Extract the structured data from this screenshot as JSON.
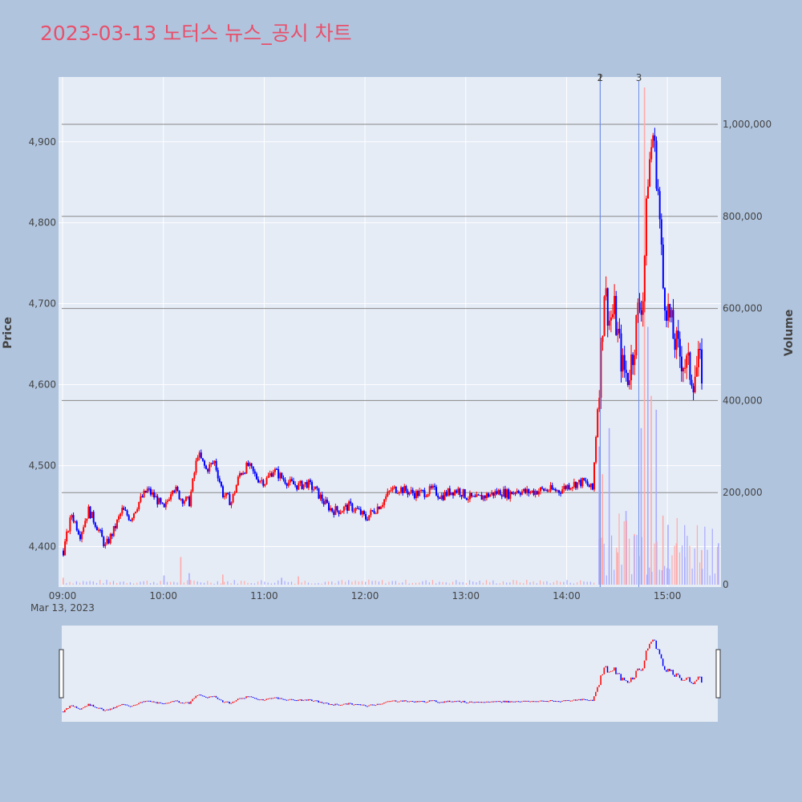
{
  "chart_data": {
    "type": "candlestick",
    "title": "2023-03-13 노터스 뉴스_공시 차트",
    "ylabel_left": "Price",
    "ylabel_right": "Volume",
    "date_label": "Mar 13, 2023",
    "x_range": [
      "09:00",
      "15:30"
    ],
    "x_ticks": [
      "09:00",
      "10:00",
      "11:00",
      "12:00",
      "13:00",
      "14:00",
      "15:00"
    ],
    "price_range": [
      4350,
      4980
    ],
    "price_ticks": [
      "4,400",
      "4,500",
      "4,600",
      "4,700",
      "4,800",
      "4,900"
    ],
    "price_tick_values": [
      4400,
      4500,
      4600,
      4700,
      4800,
      4900
    ],
    "volume_range": [
      0,
      1000000
    ],
    "volume_ticks": [
      "0",
      "200,000",
      "400,000",
      "600,000",
      "800,000",
      "1,000,000"
    ],
    "volume_tick_values": [
      0,
      200000,
      400000,
      600000,
      800000,
      1000000
    ],
    "up_color": "#ff0000",
    "down_color": "#0000ff",
    "event_markers": [
      {
        "label": "1",
        "time": "14:20"
      },
      {
        "label": "2",
        "time": "14:20"
      },
      {
        "label": "3",
        "time": "14:43"
      }
    ],
    "price_path": [
      [
        "09:00",
        4395
      ],
      [
        "09:05",
        4440
      ],
      [
        "09:10",
        4415
      ],
      [
        "09:15",
        4445
      ],
      [
        "09:20",
        4425
      ],
      [
        "09:25",
        4400
      ],
      [
        "09:30",
        4420
      ],
      [
        "09:35",
        4445
      ],
      [
        "09:40",
        4435
      ],
      [
        "09:45",
        4455
      ],
      [
        "09:50",
        4470
      ],
      [
        "09:55",
        4460
      ],
      [
        "10:00",
        4445
      ],
      [
        "10:05",
        4475
      ],
      [
        "10:10",
        4460
      ],
      [
        "10:15",
        4455
      ],
      [
        "10:20",
        4515
      ],
      [
        "10:25",
        4495
      ],
      [
        "10:30",
        4505
      ],
      [
        "10:35",
        4465
      ],
      [
        "10:40",
        4455
      ],
      [
        "10:45",
        4490
      ],
      [
        "10:50",
        4500
      ],
      [
        "10:55",
        4485
      ],
      [
        "11:00",
        4480
      ],
      [
        "11:05",
        4495
      ],
      [
        "11:10",
        4485
      ],
      [
        "11:15",
        4478
      ],
      [
        "11:20",
        4475
      ],
      [
        "11:25",
        4478
      ],
      [
        "11:30",
        4470
      ],
      [
        "11:35",
        4455
      ],
      [
        "11:40",
        4445
      ],
      [
        "11:45",
        4445
      ],
      [
        "11:50",
        4450
      ],
      [
        "11:55",
        4445
      ],
      [
        "12:00",
        4435
      ],
      [
        "12:05",
        4445
      ],
      [
        "12:10",
        4455
      ],
      [
        "12:15",
        4470
      ],
      [
        "12:20",
        4472
      ],
      [
        "12:25",
        4468
      ],
      [
        "12:30",
        4465
      ],
      [
        "12:35",
        4467
      ],
      [
        "12:40",
        4470
      ],
      [
        "12:45",
        4462
      ],
      [
        "12:50",
        4468
      ],
      [
        "12:55",
        4470
      ],
      [
        "13:00",
        4462
      ],
      [
        "13:05",
        4458
      ],
      [
        "13:10",
        4462
      ],
      [
        "13:15",
        4465
      ],
      [
        "13:20",
        4468
      ],
      [
        "13:25",
        4465
      ],
      [
        "13:30",
        4470
      ],
      [
        "13:35",
        4467
      ],
      [
        "13:40",
        4468
      ],
      [
        "13:45",
        4470
      ],
      [
        "13:50",
        4470
      ],
      [
        "13:55",
        4469
      ],
      [
        "14:00",
        4475
      ],
      [
        "14:05",
        4478
      ],
      [
        "14:10",
        4480
      ],
      [
        "14:15",
        4470
      ],
      [
        "14:20",
        4640
      ],
      [
        "14:22",
        4720
      ],
      [
        "14:25",
        4680
      ],
      [
        "14:28",
        4690
      ],
      [
        "14:30",
        4660
      ],
      [
        "14:33",
        4620
      ],
      [
        "14:36",
        4610
      ],
      [
        "14:39",
        4640
      ],
      [
        "14:42",
        4690
      ],
      [
        "14:45",
        4710
      ],
      [
        "14:48",
        4860
      ],
      [
        "14:51",
        4910
      ],
      [
        "14:54",
        4840
      ],
      [
        "14:57",
        4720
      ],
      [
        "15:00",
        4690
      ],
      [
        "15:03",
        4660
      ],
      [
        "15:06",
        4640
      ],
      [
        "15:09",
        4630
      ],
      [
        "15:12",
        4620
      ],
      [
        "15:15",
        4610
      ],
      [
        "15:18",
        4625
      ],
      [
        "15:21",
        4615
      ],
      [
        "15:25",
        4610
      ],
      [
        "15:30",
        4630
      ]
    ],
    "volume_spikes": [
      [
        "09:00",
        15000
      ],
      [
        "10:00",
        20000
      ],
      [
        "10:10",
        60000
      ],
      [
        "10:15",
        25000
      ],
      [
        "10:35",
        22000
      ],
      [
        "11:10",
        15000
      ],
      [
        "11:20",
        18000
      ],
      [
        "14:19",
        300000
      ],
      [
        "14:21",
        240000
      ],
      [
        "14:25",
        340000
      ],
      [
        "14:30",
        70000
      ],
      [
        "14:35",
        160000
      ],
      [
        "14:40",
        110000
      ],
      [
        "14:44",
        340000
      ],
      [
        "14:46",
        1080000
      ],
      [
        "14:48",
        560000
      ],
      [
        "14:50",
        410000
      ],
      [
        "14:53",
        380000
      ],
      [
        "14:57",
        150000
      ],
      [
        "15:00",
        130000
      ],
      [
        "15:05",
        90000
      ],
      [
        "15:10",
        60000
      ],
      [
        "15:20",
        75000
      ],
      [
        "15:30",
        90000
      ]
    ]
  }
}
